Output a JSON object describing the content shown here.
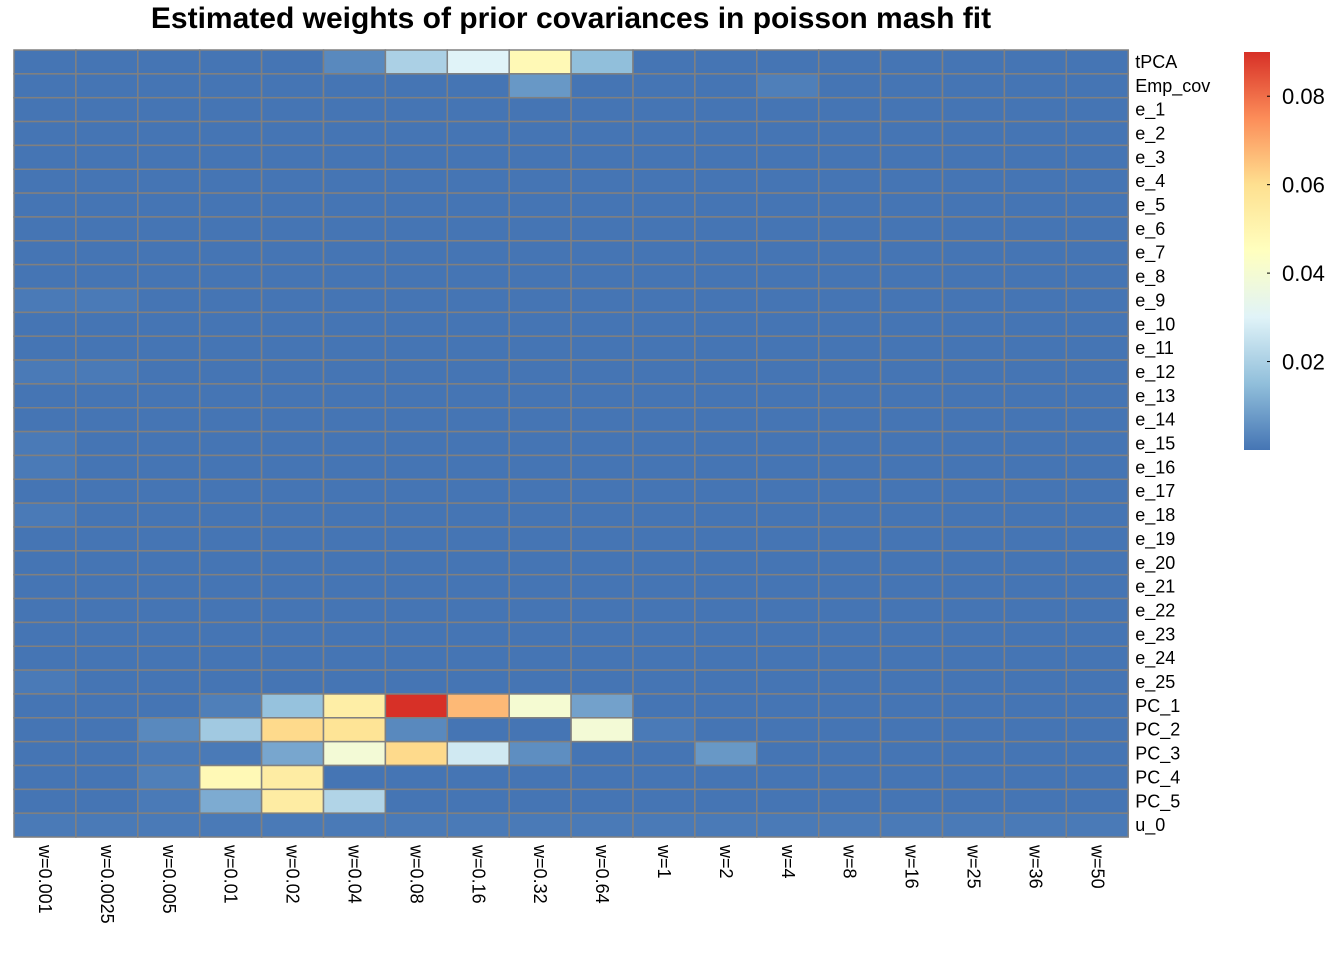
{
  "chart_data": {
    "type": "heatmap",
    "title": "Estimated weights of prior covariances in poisson mash fit",
    "rows": [
      "tPCA",
      "Emp_cov",
      "e_1",
      "e_2",
      "e_3",
      "e_4",
      "e_5",
      "e_6",
      "e_7",
      "e_8",
      "e_9",
      "e_10",
      "e_11",
      "e_12",
      "e_13",
      "e_14",
      "e_15",
      "e_16",
      "e_17",
      "e_18",
      "e_19",
      "e_20",
      "e_21",
      "e_22",
      "e_23",
      "e_24",
      "e_25",
      "PC_1",
      "PC_2",
      "PC_3",
      "PC_4",
      "PC_5",
      "u_0"
    ],
    "columns": [
      "w=0.001",
      "w=0.0025",
      "w=0.005",
      "w=0.01",
      "w=0.02",
      "w=0.04",
      "w=0.08",
      "w=0.16",
      "w=0.32",
      "w=0.64",
      "w=1",
      "w=2",
      "w=4",
      "w=8",
      "w=16",
      "w=25",
      "w=36",
      "w=50"
    ],
    "values": [
      [
        0,
        0,
        0,
        0,
        0,
        0.004,
        0.02,
        0.03,
        0.048,
        0.015,
        0,
        0,
        0,
        0,
        0,
        0,
        0,
        0
      ],
      [
        0,
        0,
        0,
        0,
        0,
        0,
        0,
        0,
        0.007,
        0,
        0,
        0,
        0.002,
        0,
        0,
        0,
        0,
        0
      ],
      [
        0,
        0,
        0,
        0,
        0,
        0,
        0,
        0,
        0,
        0,
        0,
        0,
        0,
        0,
        0,
        0,
        0,
        0
      ],
      [
        0,
        0,
        0,
        0,
        0,
        0,
        0,
        0,
        0,
        0,
        0,
        0,
        0,
        0,
        0,
        0,
        0,
        0
      ],
      [
        0,
        0,
        0,
        0,
        0,
        0,
        0,
        0,
        0,
        0,
        0,
        0,
        0,
        0,
        0,
        0,
        0,
        0
      ],
      [
        0,
        0,
        0,
        0,
        0,
        0,
        0,
        0,
        0,
        0,
        0,
        0,
        0,
        0,
        0,
        0,
        0,
        0
      ],
      [
        0,
        0,
        0,
        0,
        0,
        0,
        0,
        0,
        0,
        0,
        0,
        0,
        0,
        0,
        0,
        0,
        0,
        0
      ],
      [
        0,
        0,
        0,
        0,
        0,
        0,
        0,
        0,
        0,
        0,
        0,
        0,
        0,
        0,
        0,
        0,
        0,
        0
      ],
      [
        0,
        0,
        0,
        0,
        0,
        0,
        0,
        0,
        0,
        0,
        0,
        0,
        0,
        0,
        0,
        0,
        0,
        0
      ],
      [
        0,
        0,
        0,
        0,
        0,
        0,
        0,
        0,
        0,
        0,
        0,
        0,
        0,
        0,
        0,
        0,
        0,
        0
      ],
      [
        0.001,
        0.001,
        0,
        0,
        0,
        0,
        0,
        0,
        0,
        0,
        0,
        0,
        0,
        0,
        0,
        0,
        0,
        0
      ],
      [
        0,
        0,
        0,
        0,
        0,
        0,
        0,
        0,
        0,
        0,
        0,
        0,
        0,
        0,
        0,
        0,
        0,
        0
      ],
      [
        0,
        0,
        0,
        0,
        0,
        0,
        0,
        0,
        0,
        0,
        0,
        0,
        0,
        0,
        0,
        0,
        0,
        0
      ],
      [
        0.001,
        0.001,
        0,
        0,
        0,
        0,
        0,
        0,
        0,
        0,
        0,
        0,
        0,
        0,
        0,
        0,
        0,
        0
      ],
      [
        0,
        0,
        0,
        0,
        0,
        0,
        0,
        0,
        0,
        0,
        0,
        0,
        0,
        0,
        0,
        0,
        0,
        0
      ],
      [
        0,
        0,
        0,
        0,
        0,
        0,
        0,
        0,
        0,
        0,
        0,
        0,
        0,
        0,
        0,
        0,
        0,
        0
      ],
      [
        0.001,
        0,
        0,
        0,
        0,
        0,
        0,
        0,
        0,
        0,
        0,
        0,
        0,
        0,
        0,
        0,
        0,
        0
      ],
      [
        0.001,
        0,
        0,
        0,
        0,
        0,
        0,
        0,
        0,
        0,
        0,
        0,
        0,
        0,
        0,
        0,
        0,
        0
      ],
      [
        0,
        0,
        0,
        0,
        0,
        0,
        0,
        0,
        0,
        0,
        0,
        0,
        0,
        0,
        0,
        0,
        0,
        0
      ],
      [
        0.001,
        0,
        0,
        0,
        0,
        0,
        0,
        0,
        0,
        0,
        0,
        0,
        0,
        0,
        0,
        0,
        0,
        0
      ],
      [
        0,
        0,
        0,
        0,
        0,
        0,
        0,
        0,
        0,
        0,
        0,
        0,
        0,
        0,
        0,
        0,
        0,
        0
      ],
      [
        0,
        0,
        0,
        0,
        0,
        0,
        0,
        0,
        0,
        0,
        0,
        0,
        0,
        0,
        0,
        0,
        0,
        0
      ],
      [
        0,
        0,
        0,
        0,
        0,
        0,
        0,
        0,
        0,
        0,
        0,
        0,
        0,
        0,
        0,
        0,
        0,
        0
      ],
      [
        0,
        0,
        0,
        0,
        0,
        0,
        0,
        0,
        0,
        0,
        0,
        0,
        0,
        0,
        0,
        0,
        0,
        0
      ],
      [
        0,
        0,
        0,
        0,
        0,
        0,
        0,
        0,
        0,
        0,
        0,
        0,
        0,
        0,
        0,
        0,
        0,
        0
      ],
      [
        0,
        0,
        0,
        0,
        0,
        0,
        0,
        0,
        0,
        0,
        0,
        0,
        0,
        0,
        0,
        0,
        0,
        0
      ],
      [
        0.001,
        0,
        0,
        0,
        0,
        0,
        0,
        0,
        0,
        0,
        0,
        0,
        0,
        0,
        0,
        0,
        0,
        0
      ],
      [
        0,
        0,
        0,
        0.002,
        0.016,
        0.053,
        0.09,
        0.067,
        0.04,
        0.009,
        0,
        0,
        0,
        0,
        0,
        0,
        0,
        0
      ],
      [
        0,
        0,
        0.004,
        0.018,
        0.061,
        0.058,
        0.004,
        0,
        0,
        0.039,
        0.001,
        0,
        0,
        0,
        0,
        0,
        0,
        0
      ],
      [
        0,
        0,
        0.001,
        0.001,
        0.01,
        0.039,
        0.061,
        0.027,
        0.005,
        0,
        0,
        0.007,
        0,
        0,
        0,
        0,
        0,
        0
      ],
      [
        0,
        0,
        0.002,
        0.048,
        0.054,
        0,
        0,
        0,
        0,
        0,
        0,
        0,
        0,
        0,
        0,
        0,
        0,
        0
      ],
      [
        0,
        0,
        0.001,
        0.011,
        0.054,
        0.021,
        0,
        0,
        0,
        0,
        0,
        0,
        0,
        0,
        0,
        0,
        0,
        0
      ],
      [
        0.001,
        0.001,
        0.001,
        0.001,
        0.001,
        0.001,
        0.001,
        0.001,
        0.001,
        0.001,
        0.001,
        0.001,
        0.001,
        0.001,
        0.001,
        0.001,
        0.001,
        0.001
      ]
    ],
    "color_scale": [
      "#4575B4",
      "#91BFDB",
      "#E0F3F8",
      "#FFFFBF",
      "#FEE090",
      "#FC8D59",
      "#D73027"
    ],
    "value_range": [
      0,
      0.09
    ],
    "legend_ticks": [
      "0.02",
      "0.04",
      "0.06",
      "0.08"
    ],
    "legend_tick_values": [
      0.02,
      0.04,
      0.06,
      0.08
    ],
    "legend_placement": "right",
    "border_color": "#808080"
  }
}
